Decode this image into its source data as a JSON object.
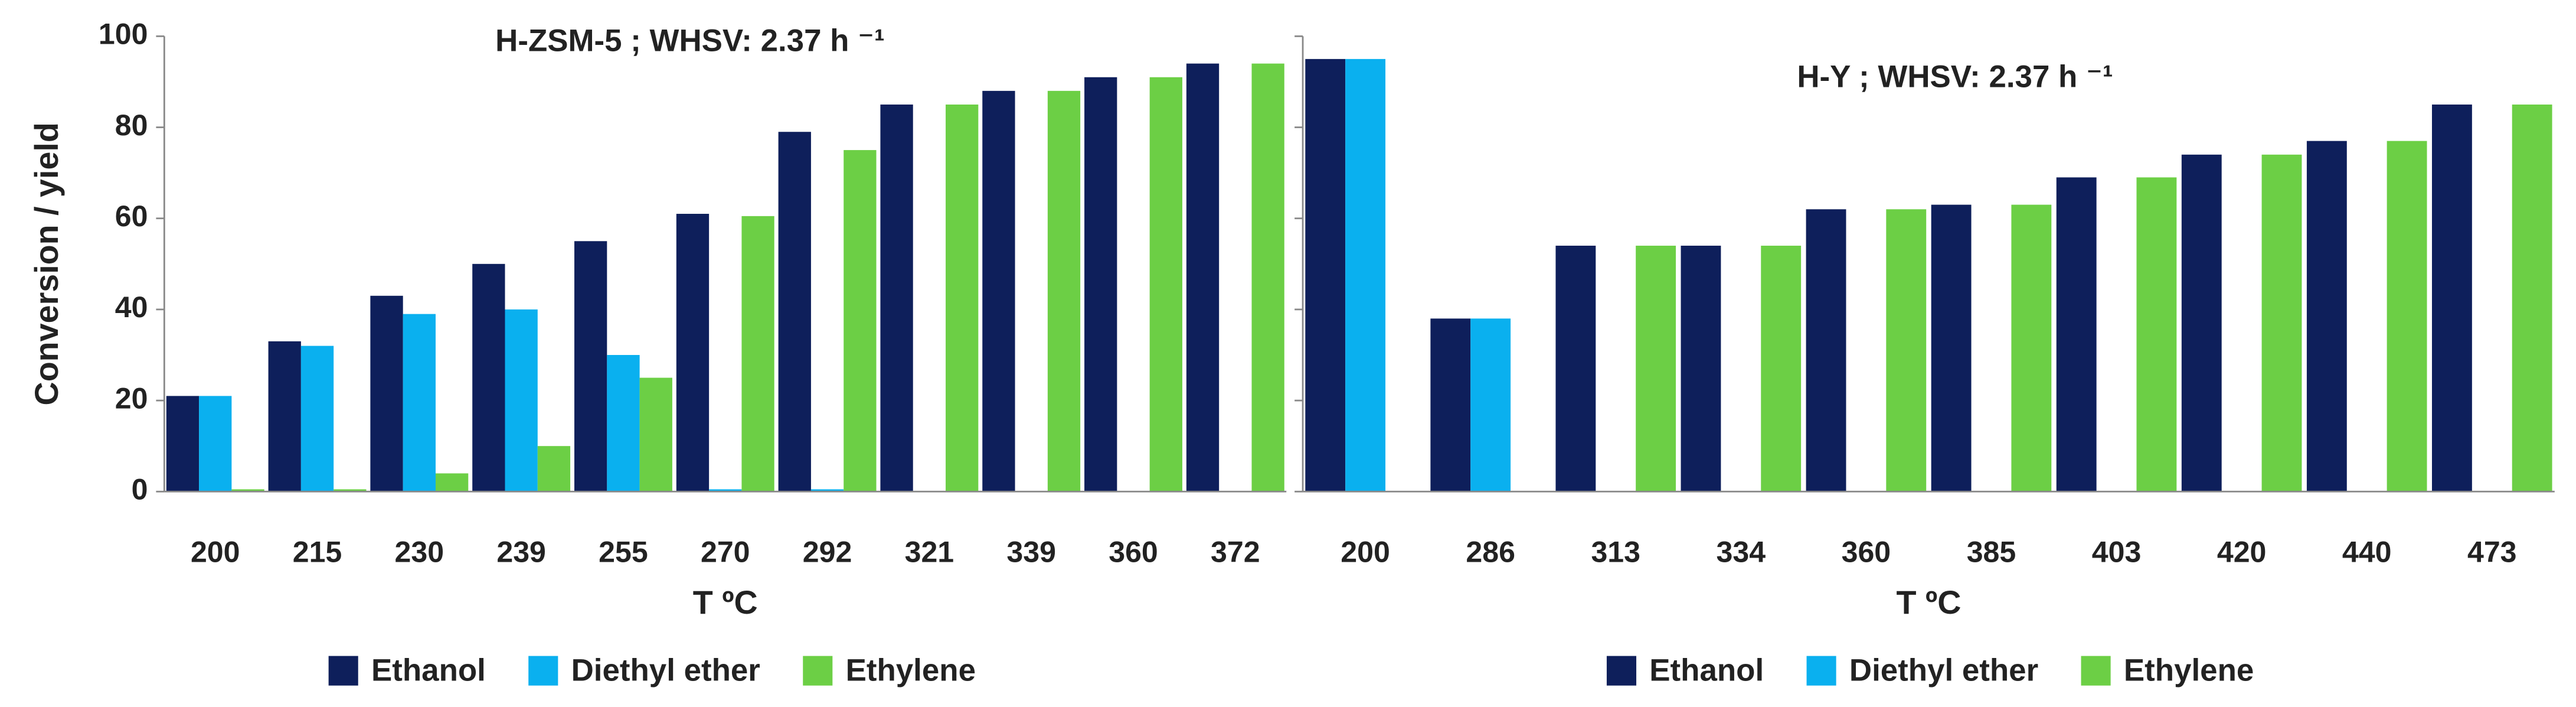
{
  "chart_data": [
    {
      "type": "bar",
      "title": "H-ZSM-5 ; WHSV: 2.37 h ⁻¹",
      "xlabel": "T ºC",
      "ylabel": "Conversion / yield",
      "categories": [
        "200",
        "215",
        "230",
        "239",
        "255",
        "270",
        "292",
        "321",
        "339",
        "360",
        "372"
      ],
      "series": [
        {
          "name": "Ethanol",
          "color": "#0e1f5b",
          "values": [
            21,
            33,
            43,
            50,
            55,
            61,
            79,
            85,
            88,
            91,
            94
          ]
        },
        {
          "name": "Diethyl ether",
          "color": "#0ab0ef",
          "values": [
            21,
            32,
            39,
            40,
            30,
            0.5,
            0.5,
            0,
            0,
            0,
            0
          ]
        },
        {
          "name": "Ethylene",
          "color": "#6ccf45",
          "values": [
            0.5,
            0.5,
            4,
            10,
            25,
            60.5,
            75,
            85,
            88,
            91,
            94
          ]
        }
      ],
      "ylim": [
        0,
        100
      ],
      "yticks": [
        0,
        20,
        40,
        60,
        80,
        100
      ]
    },
    {
      "type": "bar",
      "title": "H-Y ; WHSV: 2.37 h ⁻¹",
      "xlabel": "T ºC",
      "categories": [
        "200",
        "286",
        "313",
        "334",
        "360",
        "385",
        "403",
        "420",
        "440",
        "473"
      ],
      "series": [
        {
          "name": "Ethanol",
          "color": "#0e1f5b",
          "values": [
            95,
            38,
            54,
            54,
            62,
            63,
            69,
            74,
            77,
            85
          ]
        },
        {
          "name": "Diethyl ether",
          "color": "#0ab0ef",
          "values": [
            95,
            38,
            0,
            0,
            0,
            0,
            0,
            0,
            0,
            0
          ]
        },
        {
          "name": "Ethylene",
          "color": "#6ccf45",
          "values": [
            0,
            0,
            54,
            54,
            62,
            63,
            69,
            74,
            77,
            85
          ]
        }
      ],
      "ylim": [
        0,
        100
      ],
      "yticks": [
        0,
        20,
        40,
        60,
        80,
        100
      ]
    }
  ]
}
